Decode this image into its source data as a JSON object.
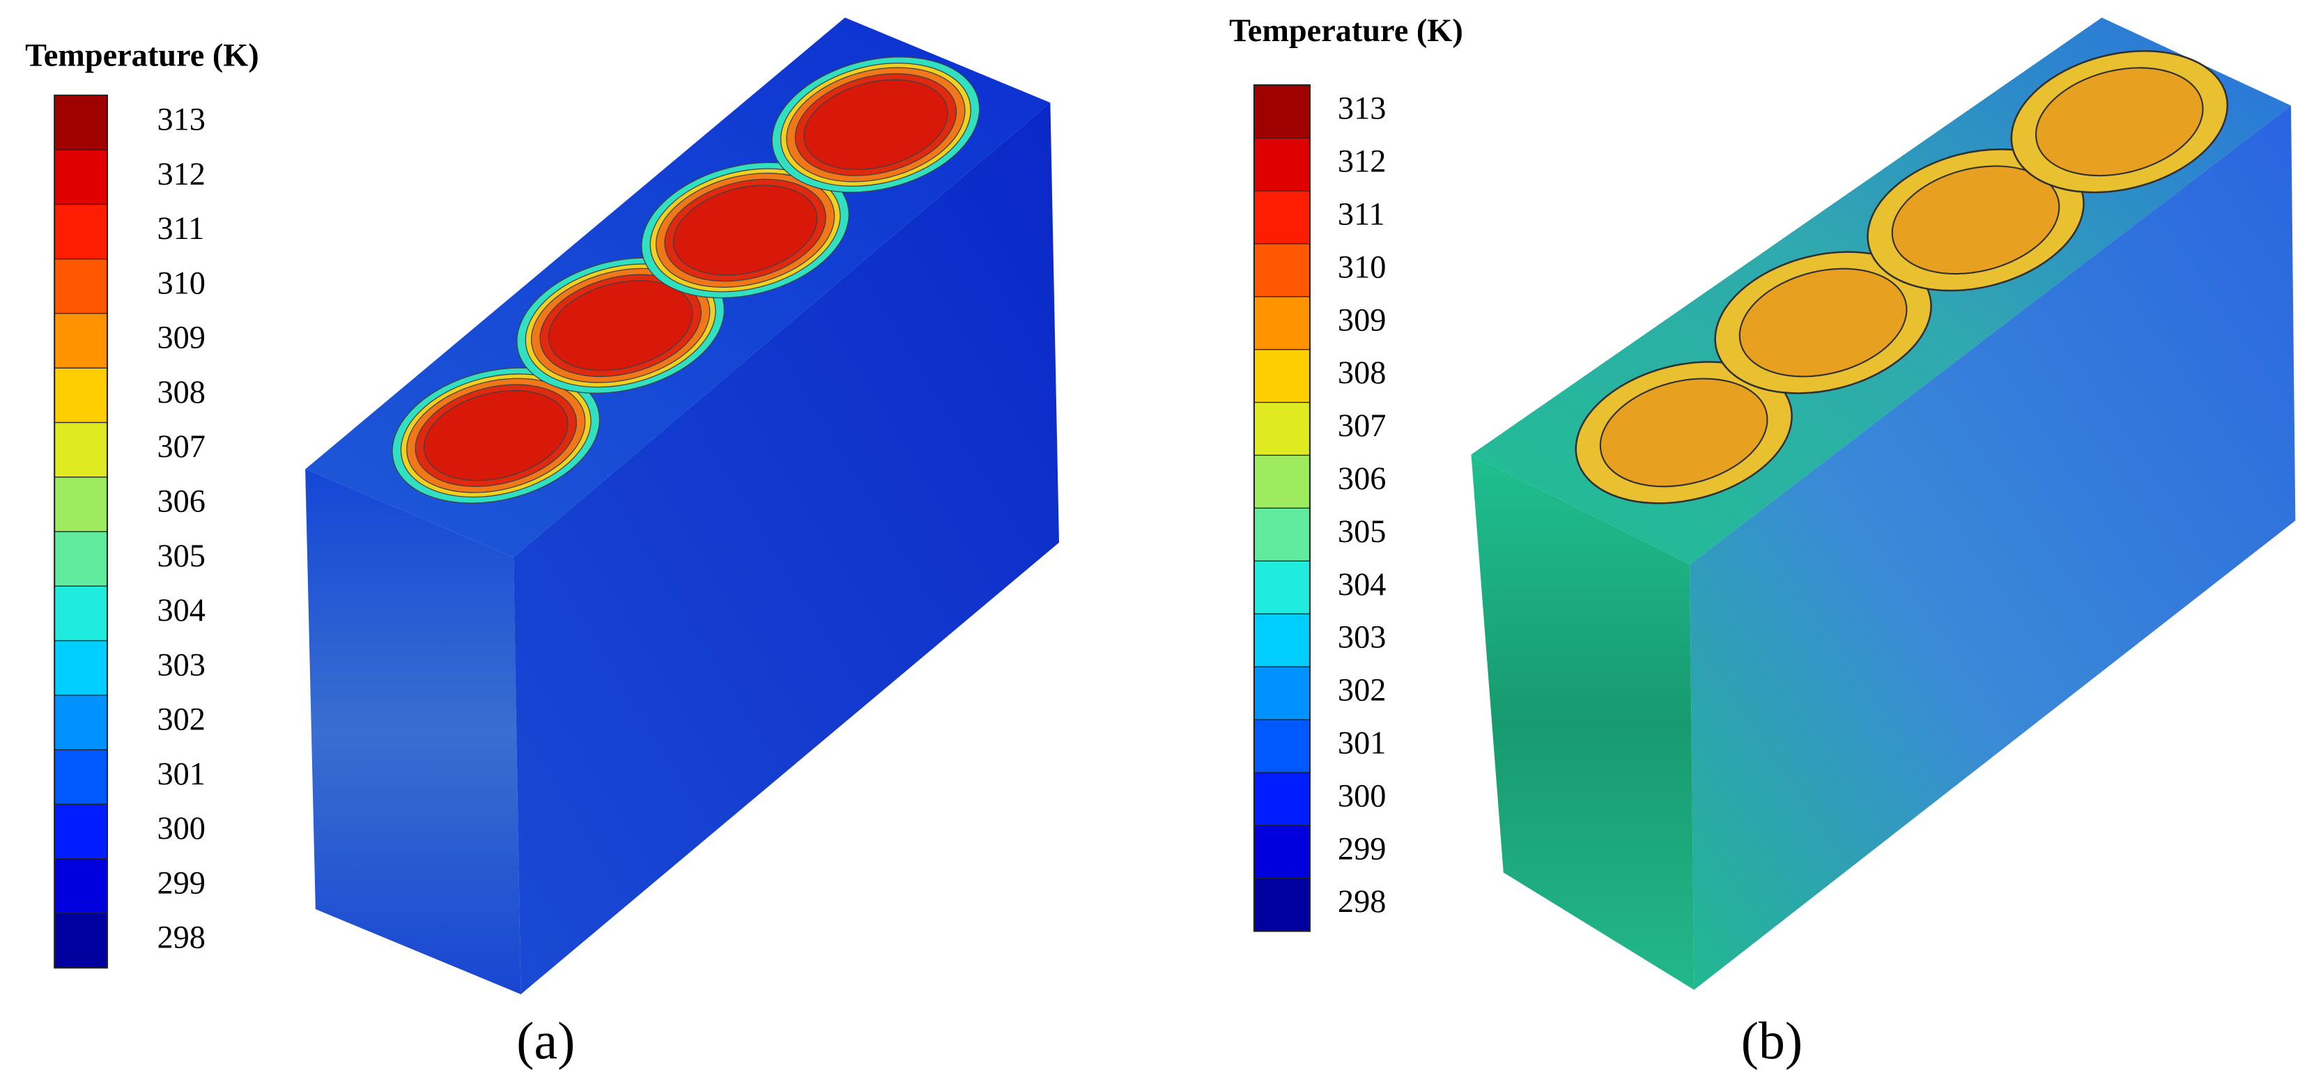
{
  "panels": [
    {
      "colorbar_title": "Temperature (K)",
      "colorbar_ticks": [
        298,
        299,
        300,
        301,
        302,
        303,
        304,
        305,
        306,
        307,
        308,
        309,
        310,
        311,
        312,
        313
      ],
      "label": "(a)"
    },
    {
      "colorbar_title": "Temperature (K)",
      "colorbar_ticks": [
        298,
        299,
        300,
        301,
        302,
        303,
        304,
        305,
        306,
        307,
        308,
        309,
        310,
        311,
        312,
        313
      ],
      "label": "(b)"
    }
  ]
}
